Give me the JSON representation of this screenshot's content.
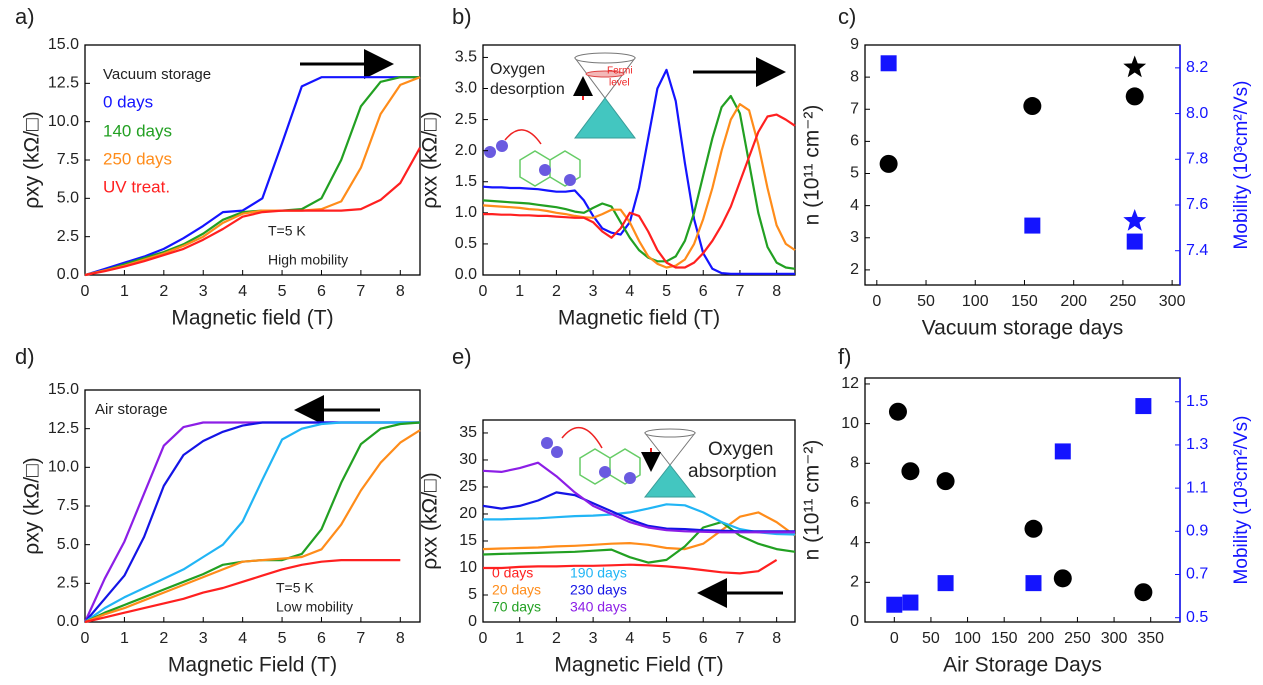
{
  "chart_data": [
    {
      "type": "line",
      "label": "a)",
      "xlabel": "Magnetic field (T)",
      "ylabel": "ρxy (kΩ/□)",
      "xlim": [
        0,
        8.5
      ],
      "xticks": [
        0,
        1,
        2,
        3,
        4,
        5,
        6,
        7,
        8
      ],
      "ylim": [
        0,
        15
      ],
      "yticks": [
        {
          "value": 0,
          "label": "0.0"
        },
        2.5,
        {
          "value": 5,
          "label": "5.0"
        },
        7.5,
        {
          "value": 10,
          "label": "10.0"
        },
        12.5,
        {
          "value": 15,
          "label": "15.0"
        }
      ],
      "annotations": [
        "Vacuum storage",
        "T=5 K",
        "High mobility"
      ],
      "x": [
        0,
        0.5,
        1,
        1.5,
        2,
        2.5,
        3,
        3.5,
        4,
        4.5,
        5,
        5.5,
        6,
        6.5,
        7,
        7.5,
        8,
        8.5
      ],
      "series": [
        {
          "name": "0 days",
          "color": "#1414ff",
          "values": [
            0,
            0.4,
            0.8,
            1.2,
            1.7,
            2.4,
            3.2,
            4.1,
            4.2,
            5.0,
            8.6,
            12.3,
            12.9,
            12.9,
            12.9,
            12.9,
            12.9,
            12.9
          ]
        },
        {
          "name": "140 days",
          "color": "#22a022",
          "values": [
            0,
            0.3,
            0.7,
            1.1,
            1.5,
            2.0,
            2.7,
            3.6,
            4.1,
            4.2,
            4.2,
            4.3,
            5.0,
            7.5,
            11.0,
            12.6,
            12.9,
            12.9
          ]
        },
        {
          "name": "250 days",
          "color": "#ff8c1a",
          "values": [
            0,
            0.3,
            0.6,
            1.0,
            1.4,
            1.9,
            2.5,
            3.4,
            4.0,
            4.2,
            4.2,
            4.2,
            4.3,
            4.8,
            7.0,
            10.5,
            12.4,
            12.9
          ]
        },
        {
          "name": "UV treat.",
          "color": "#ff2020",
          "values": [
            0,
            0.25,
            0.55,
            0.9,
            1.3,
            1.7,
            2.3,
            3.0,
            3.8,
            4.1,
            4.2,
            4.2,
            4.2,
            4.2,
            4.3,
            4.9,
            6.0,
            8.3
          ]
        }
      ]
    },
    {
      "type": "line",
      "label": "b)",
      "xlabel": "Magnetic field (T)",
      "ylabel": "ρxx (kΩ/□)",
      "xlim": [
        0,
        8.5
      ],
      "xticks": [
        0,
        1,
        2,
        3,
        4,
        5,
        6,
        7,
        8
      ],
      "ylim": [
        0,
        3.7
      ],
      "yticks": [
        {
          "value": 0,
          "label": "0.0"
        },
        0.5,
        {
          "value": 1,
          "label": "1.0"
        },
        1.5,
        {
          "value": 2,
          "label": "2.0"
        },
        2.5,
        {
          "value": 3,
          "label": "3.0"
        },
        3.5
      ],
      "annotations": [
        "Oxygen",
        "desorption",
        "Fermi",
        "level"
      ],
      "x": [
        0,
        0.25,
        0.5,
        0.75,
        1,
        1.25,
        1.5,
        1.75,
        2,
        2.25,
        2.5,
        2.75,
        3,
        3.25,
        3.5,
        3.75,
        4,
        4.25,
        4.5,
        4.75,
        5,
        5.25,
        5.5,
        5.75,
        6,
        6.25,
        6.5,
        6.75,
        7,
        7.25,
        7.5,
        7.75,
        8,
        8.25,
        8.5
      ],
      "series": [
        {
          "color": "#1414ff",
          "values": [
            1.42,
            1.41,
            1.41,
            1.4,
            1.4,
            1.39,
            1.38,
            1.36,
            1.34,
            1.34,
            1.36,
            1.2,
            0.95,
            0.75,
            0.68,
            0.65,
            0.85,
            1.4,
            2.2,
            3.0,
            3.3,
            2.8,
            1.8,
            0.9,
            0.35,
            0.1,
            0.03,
            0.02,
            0.02,
            0.02,
            0.02,
            0.02,
            0.02,
            0.02,
            0.02
          ]
        },
        {
          "color": "#22a022",
          "values": [
            1.2,
            1.19,
            1.18,
            1.17,
            1.16,
            1.15,
            1.13,
            1.11,
            1.09,
            1.06,
            1.02,
            1.0,
            1.08,
            1.15,
            1.1,
            0.85,
            0.6,
            0.4,
            0.28,
            0.22,
            0.22,
            0.3,
            0.55,
            1.0,
            1.6,
            2.2,
            2.7,
            2.88,
            2.6,
            1.8,
            1.0,
            0.45,
            0.2,
            0.12,
            0.1
          ]
        },
        {
          "color": "#ff8c1a",
          "values": [
            1.12,
            1.11,
            1.1,
            1.09,
            1.08,
            1.06,
            1.05,
            1.03,
            1.0,
            0.98,
            0.95,
            0.93,
            0.92,
            0.98,
            1.05,
            1.05,
            0.85,
            0.55,
            0.3,
            0.18,
            0.12,
            0.15,
            0.25,
            0.5,
            0.9,
            1.4,
            2.0,
            2.5,
            2.75,
            2.65,
            2.1,
            1.4,
            0.8,
            0.5,
            0.4
          ]
        },
        {
          "color": "#ff2020",
          "values": [
            0.98,
            0.98,
            0.97,
            0.97,
            0.96,
            0.96,
            0.95,
            0.95,
            0.94,
            0.93,
            0.92,
            0.92,
            0.85,
            0.7,
            0.6,
            0.75,
            1.0,
            0.95,
            0.7,
            0.4,
            0.2,
            0.12,
            0.12,
            0.2,
            0.35,
            0.55,
            0.8,
            1.1,
            1.5,
            1.9,
            2.3,
            2.55,
            2.58,
            2.5,
            2.4
          ]
        }
      ]
    },
    {
      "type": "scatter",
      "label": "c)",
      "xlabel": "Vacuum storage days",
      "ylabel": "n (10¹¹ cm⁻²)",
      "y2label": "Mobility (10³cm²/Vs)",
      "xlim": [
        -12,
        308
      ],
      "xticks": [
        0,
        50,
        100,
        150,
        200,
        250,
        300
      ],
      "ylim": [
        1.53,
        9.0
      ],
      "yticks": [
        2,
        3,
        4,
        5,
        6,
        7,
        8,
        9
      ],
      "y2lim": [
        7.25,
        8.3
      ],
      "y2ticks": [
        7.4,
        7.6,
        7.8,
        {
          "value": 8,
          "label": "8.0"
        },
        8.2
      ],
      "y2color": "#1414ff",
      "series": [
        {
          "color": "#000000",
          "marker": "circle",
          "x": [
            12,
            158,
            262
          ],
          "values": [
            5.3,
            7.1,
            7.4
          ]
        },
        {
          "color": "#000000",
          "marker": "star",
          "x": [
            262
          ],
          "values": [
            8.3
          ]
        },
        {
          "color": "#1414ff",
          "marker": "square",
          "axis": "y2",
          "x": [
            12,
            158,
            262
          ],
          "values": [
            8.22,
            7.51,
            7.44
          ]
        },
        {
          "color": "#1414ff",
          "marker": "star",
          "axis": "y2",
          "x": [
            262
          ],
          "values": [
            7.53
          ]
        }
      ]
    },
    {
      "type": "line",
      "label": "d)",
      "xlabel": "Magnetic Field (T)",
      "ylabel": "ρxy (kΩ/□)",
      "xlim": [
        0,
        8.5
      ],
      "xticks": [
        0,
        1,
        2,
        3,
        4,
        5,
        6,
        7,
        8
      ],
      "ylim": [
        0,
        15
      ],
      "yticks": [
        {
          "value": 0,
          "label": "0.0"
        },
        2.5,
        {
          "value": 5,
          "label": "5.0"
        },
        7.5,
        {
          "value": 10,
          "label": "10.0"
        },
        12.5,
        {
          "value": 15,
          "label": "15.0"
        }
      ],
      "annotations": [
        "Air storage",
        "T=5 K",
        "Low mobility"
      ],
      "x": [
        0,
        0.5,
        1,
        1.5,
        2,
        2.5,
        3,
        3.5,
        4,
        4.5,
        5,
        5.5,
        6,
        6.5,
        7,
        7.5,
        8,
        8.5
      ],
      "series": [
        {
          "color": "#8c1ee6",
          "values": [
            0,
            2.8,
            5.2,
            8.3,
            11.4,
            12.6,
            12.9,
            12.9,
            12.9,
            12.9,
            12.9,
            12.9,
            12.9,
            12.9,
            12.9,
            12.9,
            12.9,
            12.9
          ]
        },
        {
          "color": "#1414e6",
          "values": [
            0,
            1.5,
            3.0,
            5.5,
            8.8,
            10.8,
            11.7,
            12.3,
            12.7,
            12.9,
            12.9,
            12.9,
            12.9,
            12.9,
            12.9,
            12.9,
            12.9,
            12.9
          ]
        },
        {
          "color": "#21b5f5",
          "values": [
            0,
            0.9,
            1.6,
            2.2,
            2.8,
            3.4,
            4.2,
            5.0,
            6.5,
            9.2,
            11.8,
            12.5,
            12.8,
            12.9,
            12.9,
            12.9,
            12.9,
            12.9
          ]
        },
        {
          "color": "#22a022",
          "values": [
            0,
            0.6,
            1.1,
            1.6,
            2.1,
            2.6,
            3.1,
            3.7,
            3.9,
            4.0,
            4.0,
            4.4,
            6.0,
            9.0,
            11.5,
            12.5,
            12.8,
            12.9
          ]
        },
        {
          "color": "#ff8c1a",
          "values": [
            0,
            0.5,
            0.9,
            1.4,
            1.9,
            2.4,
            2.9,
            3.4,
            3.9,
            4.0,
            4.1,
            4.2,
            4.7,
            6.3,
            8.5,
            10.3,
            11.6,
            12.4
          ]
        },
        {
          "color": "#ff2020",
          "values": [
            0,
            0.3,
            0.6,
            0.9,
            1.2,
            1.5,
            1.9,
            2.2,
            2.6,
            3.0,
            3.4,
            3.7,
            3.9,
            4.0,
            4.0,
            4.0,
            4.0,
            null
          ]
        }
      ]
    },
    {
      "type": "line",
      "label": "e)",
      "xlabel": "Magnetic Field (T)",
      "ylabel": "ρxx (kΩ/□)",
      "xlim": [
        0,
        8.5
      ],
      "xticks": [
        0,
        1,
        2,
        3,
        4,
        5,
        6,
        7,
        8
      ],
      "ylim": [
        0,
        37.4
      ],
      "yticks": [
        0,
        5,
        10,
        15,
        20,
        25,
        30,
        35
      ],
      "annotations": [
        "Oxygen",
        "absorption"
      ],
      "x": [
        0,
        0.5,
        1,
        1.5,
        2,
        2.5,
        3,
        3.5,
        4,
        4.5,
        5,
        5.5,
        6,
        6.5,
        7,
        7.5,
        8,
        8.5
      ],
      "series": [
        {
          "name": "0 days",
          "color": "#ff2020",
          "values": [
            10,
            10,
            10.2,
            10.3,
            10.3,
            10.4,
            10.4,
            10.5,
            10.6,
            10.5,
            10.3,
            10,
            9.6,
            9.2,
            9.0,
            9.4,
            11.5,
            null
          ]
        },
        {
          "name": "20 days",
          "color": "#ff8c1a",
          "values": [
            13.5,
            13.6,
            13.7,
            13.8,
            14,
            14.1,
            14.3,
            14.5,
            14.6,
            14.3,
            13.7,
            13.5,
            14.5,
            17,
            19.5,
            20.3,
            18.5,
            16
          ]
        },
        {
          "name": "70 days",
          "color": "#22a022",
          "values": [
            12.5,
            12.6,
            12.7,
            12.8,
            12.9,
            13,
            13.2,
            13.4,
            12,
            11,
            11.5,
            14,
            17.5,
            18.5,
            16,
            14.5,
            13.5,
            13
          ]
        },
        {
          "name": "190 days",
          "color": "#21b5f5",
          "values": [
            19,
            19,
            19.1,
            19.2,
            19.4,
            19.6,
            19.7,
            19.9,
            20.3,
            21,
            21.8,
            21.6,
            20.3,
            18.5,
            17.2,
            16.6,
            16.3,
            16.2
          ]
        },
        {
          "name": "230 days",
          "color": "#1414e6",
          "values": [
            21.5,
            21,
            21.5,
            22.5,
            24,
            23.5,
            22,
            20.5,
            19,
            17.8,
            17.3,
            17.2,
            17,
            16.9,
            16.8,
            16.8,
            16.8,
            16.8
          ]
        },
        {
          "name": "340 days",
          "color": "#8c1ee6",
          "values": [
            28,
            27.8,
            28.5,
            29.5,
            27,
            24,
            21.5,
            20,
            18.5,
            17.5,
            17,
            16.8,
            16.7,
            16.6,
            16.6,
            16.6,
            16.6,
            16.6
          ]
        }
      ]
    },
    {
      "type": "scatter",
      "label": "f)",
      "xlabel": "Air Storage Days",
      "ylabel": "n (10¹¹ cm⁻²)",
      "y2label": "Mobility (10³cm²/Vs)",
      "xlim": [
        -40,
        390
      ],
      "xticks": [
        0,
        50,
        100,
        150,
        200,
        250,
        300,
        350
      ],
      "ylim": [
        0,
        12.3
      ],
      "yticks": [
        0,
        2,
        4,
        6,
        8,
        10,
        12
      ],
      "y2lim": [
        0.48,
        1.61
      ],
      "y2ticks": [
        0.5,
        0.7,
        0.9,
        1.1,
        1.3,
        1.5
      ],
      "y2color": "#1414ff",
      "series": [
        {
          "color": "#000000",
          "marker": "circle",
          "x": [
            5,
            22,
            70,
            190,
            230,
            340
          ],
          "values": [
            10.6,
            7.6,
            7.1,
            4.7,
            2.2,
            1.5
          ]
        },
        {
          "color": "#1414ff",
          "marker": "square",
          "axis": "y2",
          "x": [
            0,
            22,
            70,
            190,
            230,
            340
          ],
          "values": [
            0.56,
            0.57,
            0.66,
            0.66,
            1.27,
            1.48
          ]
        }
      ]
    }
  ]
}
